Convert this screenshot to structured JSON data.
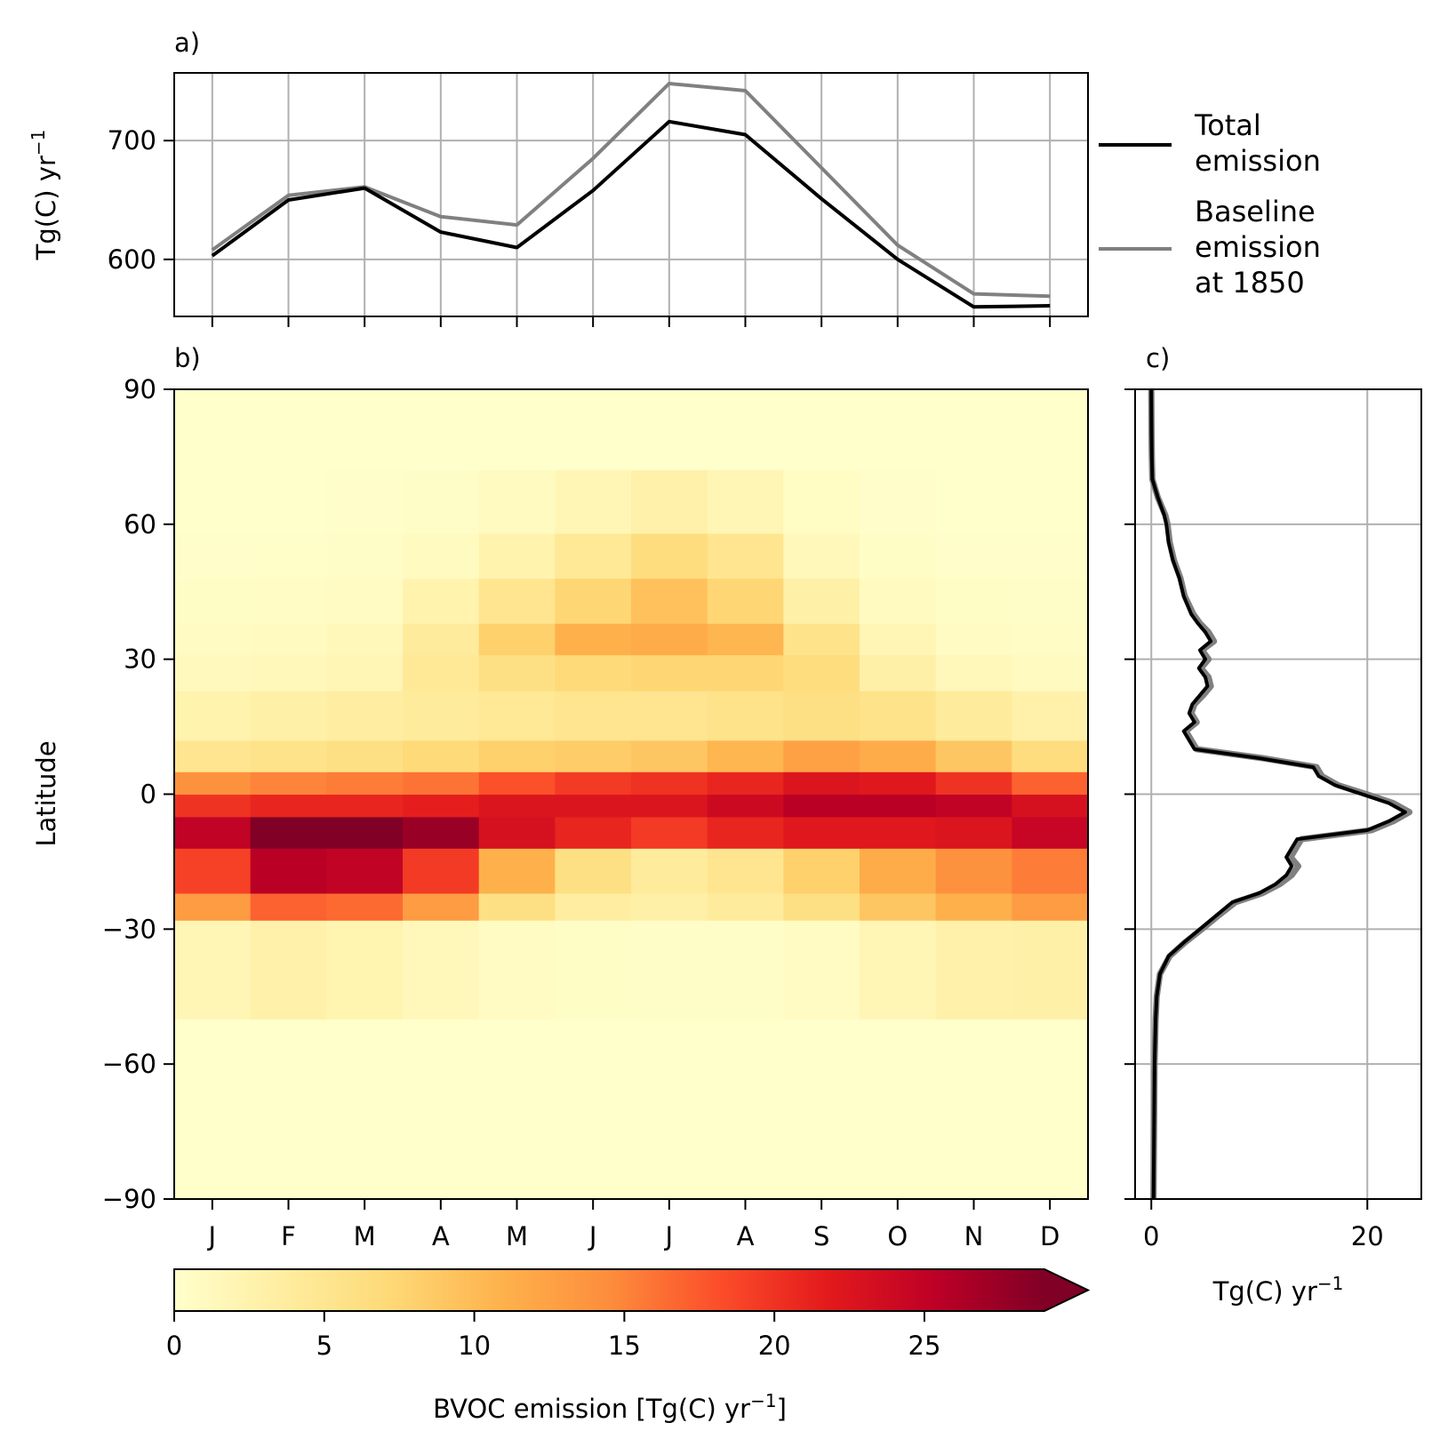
{
  "chart_data": [
    {
      "type": "line",
      "panel_label": "a)",
      "ylabel": "Tg(C) yr",
      "ylabel_superscript": "−1",
      "x": [
        "J",
        "F",
        "M",
        "A",
        "M",
        "J",
        "J",
        "A",
        "S",
        "O",
        "N",
        "D"
      ],
      "ylim": [
        552,
        757
      ],
      "yticks": [
        600,
        700
      ],
      "ytick_labels": [
        "600",
        "700"
      ],
      "grid": true,
      "legend_placement": "right",
      "series": [
        {
          "name": "Total emission",
          "legend_lines": [
            "Total",
            "emission"
          ],
          "color": "#000000",
          "values": [
            603,
            650,
            660,
            623,
            610,
            658,
            716,
            705,
            651,
            600,
            560,
            561
          ]
        },
        {
          "name": "Baseline emission at 1850",
          "legend_lines": [
            "Baseline",
            "emission",
            "at 1850"
          ],
          "color": "#808080",
          "values": [
            608,
            654,
            661,
            636,
            629,
            685,
            748,
            742,
            677,
            612,
            571,
            569
          ]
        }
      ]
    },
    {
      "type": "heatmap",
      "panel_label": "b)",
      "xlabel": "",
      "ylabel": "Latitude",
      "x": [
        "J",
        "F",
        "M",
        "A",
        "M",
        "J",
        "J",
        "A",
        "S",
        "O",
        "N",
        "D"
      ],
      "ylim": [
        -90,
        90
      ],
      "yticks": [
        90,
        60,
        30,
        0,
        -30,
        -60,
        -90
      ],
      "ytick_labels": [
        "90",
        "60",
        "30",
        "0",
        "−30",
        "−60",
        "−90"
      ],
      "latitude_centers": [
        -30,
        -20,
        -15,
        -5,
        0,
        5,
        10,
        20,
        30,
        37,
        45,
        55,
        65
      ],
      "latitude_widths": [
        40,
        16,
        14,
        14,
        10,
        10,
        10,
        16,
        14,
        12,
        14,
        14,
        14
      ],
      "values": [
        [
          2.0,
          2.8,
          2.3,
          1.5,
          0.8,
          0.5,
          0.4,
          0.4,
          0.8,
          2.0,
          2.8,
          3.0
        ],
        [
          13.0,
          17.0,
          16.5,
          13.0,
          6.0,
          3.5,
          3.0,
          4.0,
          6.0,
          9.0,
          11.0,
          13.0
        ],
        [
          19.0,
          25.5,
          25.0,
          19.5,
          11.0,
          6.0,
          4.0,
          5.0,
          8.0,
          11.5,
          14.0,
          15.5
        ],
        [
          25.0,
          29.0,
          30.5,
          27.5,
          23.0,
          21.0,
          19.5,
          21.0,
          22.0,
          22.0,
          22.5,
          24.5
        ],
        [
          20.0,
          21.0,
          21.0,
          21.5,
          22.5,
          22.5,
          22.5,
          24.0,
          25.5,
          25.5,
          25.0,
          23.0
        ],
        [
          14.0,
          15.0,
          15.5,
          16.0,
          18.0,
          19.5,
          20.0,
          21.0,
          22.5,
          22.0,
          20.0,
          17.0
        ],
        [
          5.0,
          5.5,
          6.0,
          7.0,
          8.0,
          8.5,
          9.0,
          10.5,
          12.5,
          11.5,
          9.0,
          6.5
        ],
        [
          2.5,
          3.0,
          3.5,
          4.0,
          4.5,
          5.0,
          5.0,
          5.5,
          6.0,
          5.5,
          4.0,
          2.8
        ],
        [
          1.2,
          1.5,
          2.0,
          4.5,
          6.0,
          7.0,
          7.5,
          7.5,
          6.5,
          3.0,
          1.5,
          1.0
        ],
        [
          0.8,
          1.0,
          1.5,
          4.0,
          8.0,
          11.0,
          11.5,
          10.5,
          5.5,
          2.0,
          0.8,
          0.6
        ],
        [
          0.5,
          0.6,
          0.8,
          2.5,
          5.0,
          7.5,
          9.5,
          7.5,
          3.0,
          1.0,
          0.5,
          0.4
        ],
        [
          0.2,
          0.3,
          0.4,
          1.0,
          2.5,
          4.5,
          6.5,
          5.0,
          1.5,
          0.5,
          0.2,
          0.2
        ],
        [
          0.1,
          0.1,
          0.2,
          0.4,
          1.0,
          1.8,
          2.8,
          2.0,
          0.7,
          0.2,
          0.1,
          0.1
        ]
      ],
      "colorbar": {
        "label": "BVOC emission [Tg(C) yr",
        "label_superscript": "−1",
        "label_suffix": "]",
        "ticks": [
          0,
          5,
          10,
          15,
          20,
          25
        ],
        "tick_labels": [
          "0",
          "5",
          "10",
          "15",
          "20",
          "25"
        ],
        "range": [
          0,
          29
        ],
        "extend": "max",
        "colormap": "YlOrRd",
        "colormap_stops": [
          "#ffffcc",
          "#ffeda0",
          "#fed976",
          "#feb24c",
          "#fd8d3c",
          "#fc4e2a",
          "#e31a1c",
          "#bd0026",
          "#800026"
        ]
      }
    },
    {
      "type": "line",
      "panel_label": "c)",
      "xlabel": "Tg(C) yr",
      "xlabel_superscript": "−1",
      "xlim": [
        -1.5,
        25
      ],
      "xticks": [
        0,
        20
      ],
      "xtick_labels": [
        "0",
        "20"
      ],
      "ylim": [
        -90,
        90
      ],
      "grid": true,
      "series": [
        {
          "name": "Total emission",
          "color": "#000000",
          "latitude": [
            -90,
            -60,
            -50,
            -45,
            -40,
            -36,
            -33,
            -30,
            -27,
            -24,
            -22,
            -20,
            -18,
            -16,
            -14,
            -12,
            -10,
            -8,
            -6,
            -4,
            -2,
            0,
            2,
            4,
            6,
            8,
            10,
            12,
            14,
            16,
            18,
            20,
            22,
            24,
            26,
            28,
            30,
            32,
            34,
            36,
            38,
            40,
            44,
            48,
            52,
            56,
            60,
            62,
            66,
            70,
            75,
            80,
            90
          ],
          "values": [
            0.2,
            0.3,
            0.4,
            0.5,
            0.8,
            1.6,
            3.0,
            4.5,
            6.0,
            7.5,
            10.0,
            11.5,
            12.5,
            13.0,
            12.5,
            13.0,
            13.5,
            20.0,
            22.0,
            23.5,
            22.0,
            19.5,
            17.0,
            15.5,
            15.0,
            10.0,
            4.0,
            3.5,
            3.0,
            4.0,
            3.5,
            3.8,
            4.5,
            5.2,
            5.0,
            4.4,
            5.0,
            4.5,
            5.5,
            5.0,
            4.3,
            3.7,
            3.0,
            2.6,
            2.0,
            1.6,
            1.4,
            1.2,
            0.6,
            0.1,
            0.05,
            0.02,
            0.0
          ]
        },
        {
          "name": "Baseline emission at 1850",
          "color": "#808080",
          "latitude": [
            -90,
            -60,
            -50,
            -45,
            -40,
            -36,
            -33,
            -30,
            -27,
            -24,
            -22,
            -20,
            -18,
            -16,
            -14,
            -12,
            -10,
            -8,
            -6,
            -4,
            -2,
            0,
            2,
            4,
            6,
            8,
            10,
            12,
            14,
            16,
            18,
            20,
            22,
            24,
            26,
            28,
            30,
            32,
            34,
            36,
            38,
            40,
            44,
            48,
            52,
            56,
            60,
            62,
            66,
            70,
            75,
            80,
            90
          ],
          "values": [
            0.2,
            0.3,
            0.4,
            0.5,
            0.8,
            1.7,
            3.1,
            4.7,
            6.2,
            7.8,
            10.3,
            11.9,
            13.0,
            13.6,
            12.9,
            13.4,
            13.9,
            20.4,
            22.4,
            23.9,
            22.4,
            19.9,
            17.3,
            15.8,
            15.3,
            10.3,
            4.2,
            3.7,
            3.2,
            4.2,
            3.7,
            4.0,
            4.8,
            5.5,
            5.3,
            4.6,
            5.3,
            4.7,
            5.8,
            5.3,
            4.5,
            3.9,
            3.1,
            2.7,
            2.1,
            1.7,
            1.5,
            1.3,
            0.6,
            0.1,
            0.05,
            0.02,
            0.0
          ]
        }
      ]
    }
  ]
}
